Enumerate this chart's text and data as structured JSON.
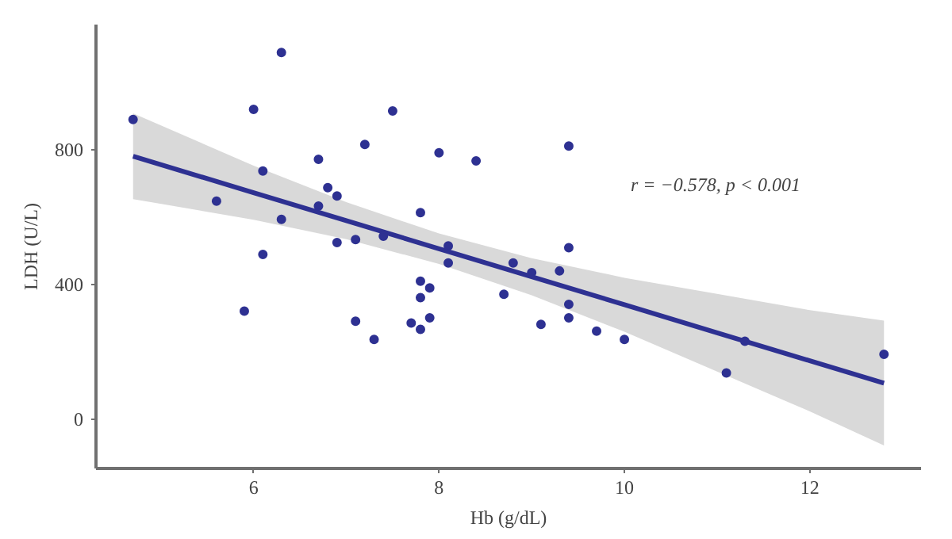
{
  "chart_data": {
    "type": "scatter",
    "xlabel": "Hb (g/dL)",
    "ylabel": "LDH (U/L)",
    "xlim": [
      4.3,
      13.2
    ],
    "ylim": [
      -145,
      1170
    ],
    "xticks": [
      6,
      8,
      10,
      12
    ],
    "yticks": [
      0,
      400,
      800
    ],
    "grid": false,
    "annotations": [
      "r = −0.578, p < 0.001"
    ],
    "series": [
      {
        "marker": "circle",
        "color": "#2e3192",
        "x": [
          4.7,
          6.0,
          6.3,
          6.1,
          5.6,
          6.3,
          6.1,
          5.9,
          6.7,
          6.8,
          6.9,
          6.7,
          6.9,
          7.1,
          7.1,
          7.3,
          7.5,
          7.2,
          7.4,
          8.0,
          8.4,
          9.4,
          7.8,
          8.1,
          8.1,
          9.4,
          8.8,
          9.0,
          9.3,
          8.7,
          7.8,
          7.9,
          7.8,
          9.4,
          7.7,
          7.9,
          7.8,
          9.1,
          9.4,
          9.7,
          10.0,
          11.3,
          11.1,
          12.8
        ],
        "values": [
          889,
          919,
          1087,
          736,
          647,
          593,
          489,
          321,
          771,
          687,
          662,
          632,
          524,
          533,
          291,
          237,
          914,
          815,
          543,
          790,
          766,
          810,
          613,
          514,
          464,
          509,
          464,
          435,
          440,
          371,
          410,
          390,
          361,
          341,
          286,
          301,
          267,
          282,
          301,
          262,
          237,
          232,
          138,
          193
        ]
      },
      {
        "type": "line",
        "color": "#2e3192",
        "line_style": "solid",
        "x": [
          4.7,
          6,
          7,
          8,
          9,
          10,
          11,
          12,
          12.8
        ],
        "values": [
          780,
          672,
          589,
          506,
          423,
          340,
          257,
          174,
          108
        ],
        "lower": [
          653,
          592,
          534,
          461,
          368,
          260,
          142,
          24,
          -77
        ],
        "upper": [
          907,
          752,
          644,
          551,
          478,
          420,
          372,
          324,
          293
        ]
      }
    ]
  }
}
